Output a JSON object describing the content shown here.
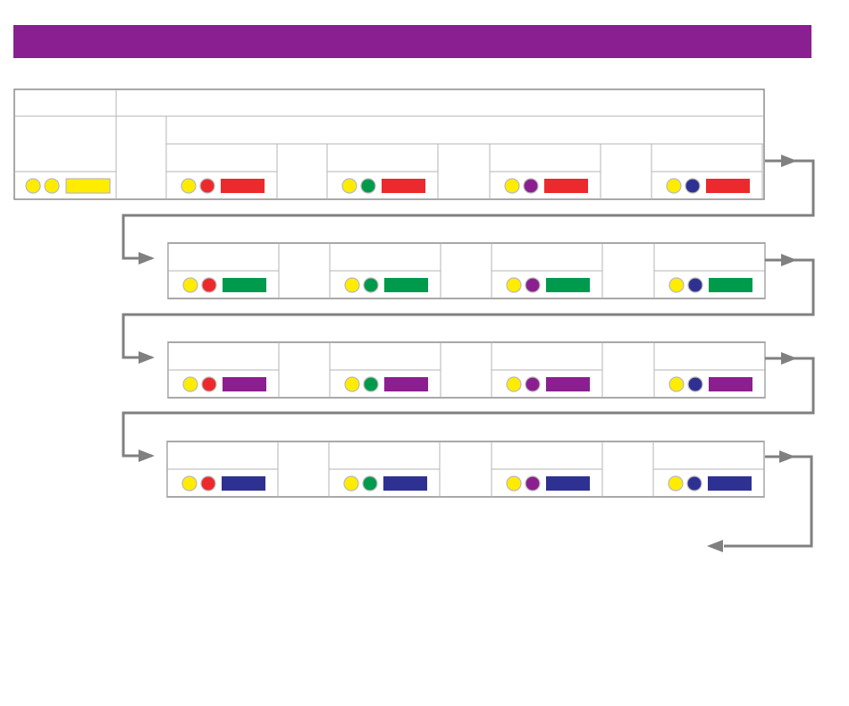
{
  "banner": {
    "color": "#8a1f92",
    "title": ""
  },
  "colors": {
    "yellow": "#ffec00",
    "red": "#ec2a2d",
    "green": "#009a4c",
    "purple": "#8c1f90",
    "blue": "#2e3192",
    "line": "#808080",
    "arrow": "#808080"
  },
  "base": {
    "dots": [
      "yellow",
      "yellow"
    ],
    "bar": "yellow"
  },
  "rows": [
    {
      "bar": "red",
      "groups": [
        {
          "dot": "red"
        },
        {
          "dot": "green"
        },
        {
          "dot": "purple"
        },
        {
          "dot": "blue"
        }
      ]
    },
    {
      "bar": "green",
      "groups": [
        {
          "dot": "red"
        },
        {
          "dot": "green"
        },
        {
          "dot": "purple"
        },
        {
          "dot": "blue"
        }
      ]
    },
    {
      "bar": "purple",
      "groups": [
        {
          "dot": "red"
        },
        {
          "dot": "green"
        },
        {
          "dot": "purple"
        },
        {
          "dot": "blue"
        }
      ]
    },
    {
      "bar": "blue",
      "groups": [
        {
          "dot": "red"
        },
        {
          "dot": "green"
        },
        {
          "dot": "purple"
        },
        {
          "dot": "blue"
        }
      ]
    }
  ]
}
